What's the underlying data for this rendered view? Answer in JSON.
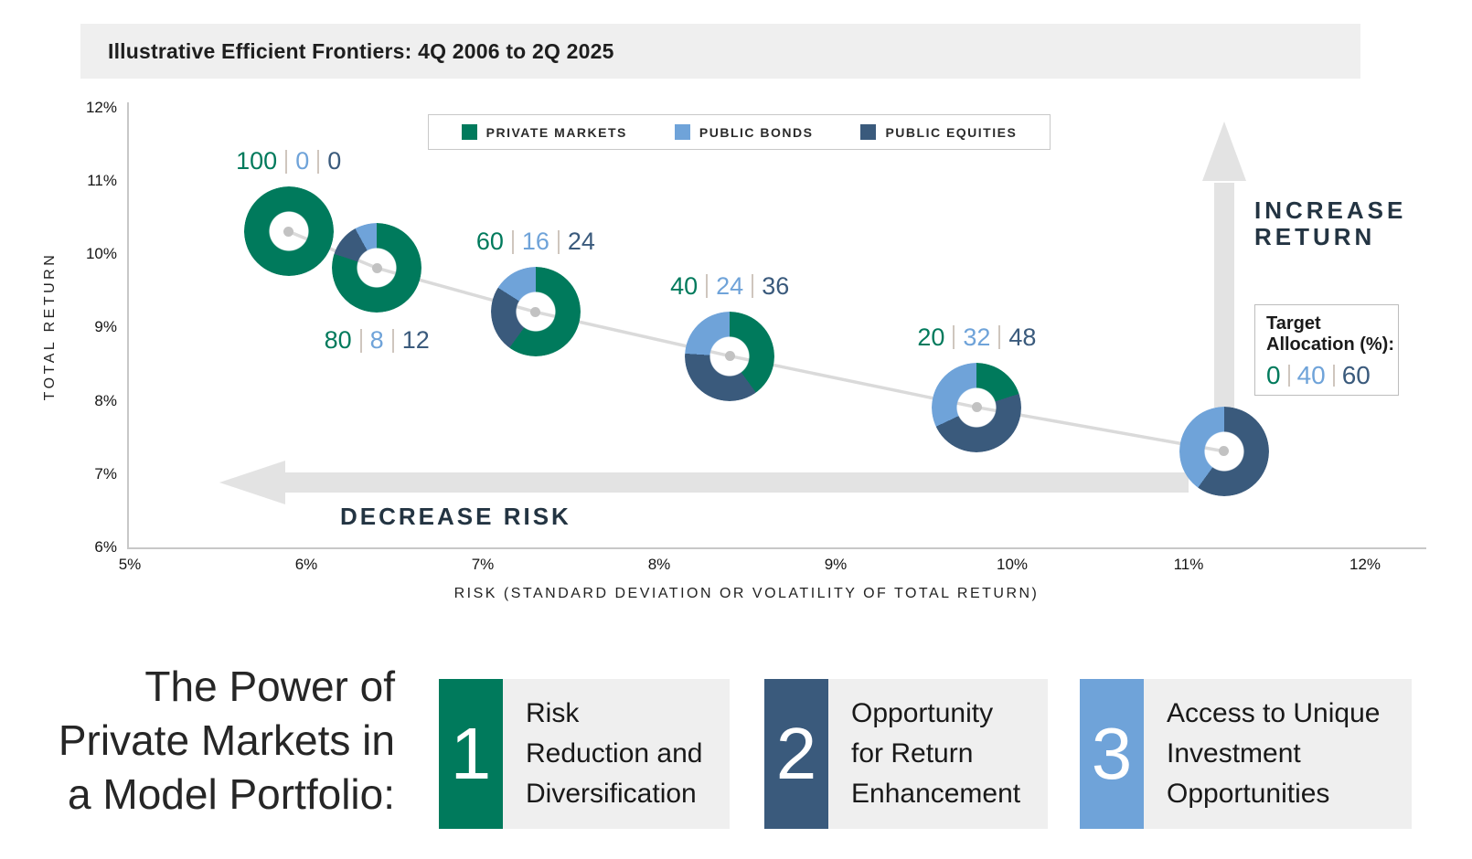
{
  "title": "Illustrative Efficient Frontiers: 4Q 2006 to 2Q 2025",
  "legend": [
    {
      "label": "PRIVATE MARKETS",
      "color": "#007A5C"
    },
    {
      "label": "PUBLIC BONDS",
      "color": "#6FA3D9"
    },
    {
      "label": "PUBLIC EQUITIES",
      "color": "#3A5A7C"
    }
  ],
  "colors": {
    "private_markets": "#007A5C",
    "public_bonds": "#6FA3D9",
    "public_equities": "#3A5A7C",
    "arrow_gray": "#e3e3e3",
    "frontier_line": "#dadada",
    "panel_gray": "#efefef"
  },
  "chart_data": {
    "type": "scatter",
    "title": "Illustrative Efficient Frontiers: 4Q 2006 to 2Q 2025",
    "xlabel": "RISK (STANDARD DEVIATION OR VOLATILITY OF TOTAL RETURN)",
    "ylabel": "TOTAL RETURN",
    "xlim": [
      5,
      12
    ],
    "ylim": [
      6,
      12
    ],
    "x_tick_labels": [
      "5%",
      "6%",
      "7%",
      "8%",
      "9%",
      "10%",
      "11%",
      "12%"
    ],
    "y_tick_labels": [
      "6%",
      "7%",
      "8%",
      "9%",
      "10%",
      "11%",
      "12%"
    ],
    "grid": false,
    "legend_position": "top-center",
    "series_names": [
      "Private Markets",
      "Public Bonds",
      "Public Equities"
    ],
    "points": [
      {
        "risk": 5.9,
        "return": 10.3,
        "allocation": [
          100,
          0,
          0
        ],
        "label_pos": "above"
      },
      {
        "risk": 6.4,
        "return": 9.8,
        "allocation": [
          80,
          8,
          12
        ],
        "label_pos": "below"
      },
      {
        "risk": 7.3,
        "return": 9.2,
        "allocation": [
          60,
          16,
          24
        ],
        "label_pos": "above"
      },
      {
        "risk": 8.4,
        "return": 8.6,
        "allocation": [
          40,
          24,
          36
        ],
        "label_pos": "above"
      },
      {
        "risk": 9.8,
        "return": 7.9,
        "allocation": [
          20,
          32,
          48
        ],
        "label_pos": "above"
      },
      {
        "risk": 11.2,
        "return": 7.3,
        "allocation": [
          0,
          40,
          60
        ],
        "label_pos": "none"
      }
    ]
  },
  "annotations": {
    "increase_return": "INCREASE\nRETURN",
    "decrease_risk": "DECREASE RISK",
    "target_allocation": {
      "title_line1": "Target",
      "title_line2": "Allocation (%):",
      "values": [
        0,
        40,
        60
      ]
    }
  },
  "bottom": {
    "heading_lines": [
      "The Power of",
      "Private Markets in",
      "a Model Portfolio:"
    ],
    "cards": [
      {
        "number": "1",
        "color": "#007A5C",
        "lines": [
          "Risk",
          "Reduction and",
          "Diversification"
        ]
      },
      {
        "number": "2",
        "color": "#3A5A7C",
        "lines": [
          "Opportunity",
          "for Return",
          "Enhancement"
        ]
      },
      {
        "number": "3",
        "color": "#6FA3D9",
        "lines": [
          "Access to Unique",
          "Investment",
          "Opportunities"
        ]
      }
    ]
  }
}
